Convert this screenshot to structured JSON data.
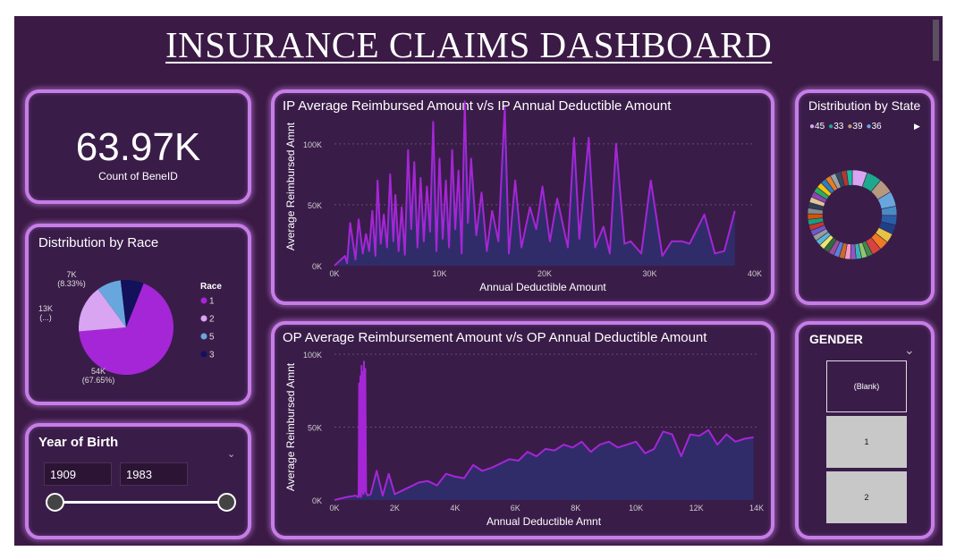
{
  "dashboard": {
    "title": "INSURANCE CLAIMS DASHBOARD"
  },
  "kpi": {
    "value": "63.97K",
    "label": "Count of BeneID"
  },
  "race": {
    "title": "Distribution by Race",
    "legend_title": "Race",
    "slices": [
      {
        "label": "1",
        "value": 54,
        "pct": 67.65,
        "color": "#a526d6",
        "l1": "54K",
        "l2": "(67.65%)"
      },
      {
        "label": "2",
        "value": 13,
        "pct": 16.3,
        "color": "#d9a4f2",
        "l1": "13K",
        "l2": "(...)"
      },
      {
        "label": "5",
        "value": 6.6,
        "pct": 8.33,
        "color": "#68a7de",
        "l1": "7K",
        "l2": "(8.33%)"
      },
      {
        "label": "3",
        "value": 6.3,
        "pct": 7.7,
        "color": "#13105c",
        "l1": "",
        "l2": ""
      }
    ]
  },
  "yob": {
    "title": "Year of Birth",
    "min": "1909",
    "max": "1983",
    "range": [
      1909,
      1983
    ],
    "selected": [
      1909,
      1983
    ]
  },
  "ip_chart": {
    "title": "IP Average Reimbursed Amount v/s IP Annual Deductible Amount"
  },
  "op_chart": {
    "title": "OP Average Reimbursement Amount v/s OP Annual Deductible Amount"
  },
  "state": {
    "title": "Distribution by State",
    "legend": [
      {
        "label": "45",
        "color": "#d9a4f2"
      },
      {
        "label": "33",
        "color": "#1ea88e"
      },
      {
        "label": "39",
        "color": "#b79a7d"
      },
      {
        "label": "36",
        "color": "#68a7de"
      }
    ],
    "next_icon": "▶",
    "ring_colors": [
      "#d9a4f2",
      "#1ea88e",
      "#b79a7d",
      "#68a7de",
      "#4a8bc4",
      "#2b5ea8",
      "#1f3f86",
      "#e6c246",
      "#ef7a22",
      "#d9423f",
      "#3e8a48",
      "#8cc96b",
      "#39b3b8",
      "#8a5bc4",
      "#f49ac1",
      "#c96b2a",
      "#5a7fd6",
      "#9b4d9e",
      "#2e6e3a",
      "#e8e86a",
      "#57b6d6",
      "#9c9c9c",
      "#6a5acd",
      "#c0392b",
      "#16a085",
      "#d35400",
      "#7f8c8d",
      "#2c3e50",
      "#e1c699",
      "#8e44ad",
      "#27ae60",
      "#f1c40f",
      "#2980b9",
      "#e67e22",
      "#95a5a6",
      "#34495e",
      "#b03a2e",
      "#1abc9c"
    ]
  },
  "gender": {
    "title": "GENDER",
    "items": [
      {
        "label": "(Blank)",
        "selected": true
      },
      {
        "label": "1",
        "selected": false
      },
      {
        "label": "2",
        "selected": false
      }
    ]
  },
  "chart_data": [
    {
      "type": "area",
      "title": "IP Average Reimbursed Amount v/s IP Annual Deductible Amount",
      "xlabel": "Annual Deductible Amount",
      "ylabel": "Average Reimbursed Amnt",
      "xlim": [
        0,
        40000
      ],
      "ylim": [
        0,
        130000
      ],
      "xticks": [
        0,
        10000,
        20000,
        30000,
        40000
      ],
      "xtick_labels": [
        "0K",
        "10K",
        "20K",
        "30K",
        "40K"
      ],
      "yticks": [
        0,
        50000,
        100000
      ],
      "ytick_labels": [
        "0K",
        "50K",
        "100K"
      ],
      "color": "#a526d6",
      "x": [
        0,
        1000,
        1200,
        1500,
        2000,
        2300,
        2700,
        3000,
        3300,
        3600,
        3900,
        4100,
        4400,
        4700,
        5000,
        5300,
        5600,
        5800,
        6100,
        6400,
        6700,
        7000,
        7300,
        7600,
        7900,
        8200,
        8500,
        8800,
        9100,
        9400,
        9700,
        10000,
        10300,
        10600,
        10900,
        11200,
        11500,
        11800,
        12100,
        12400,
        12700,
        13000,
        13500,
        14000,
        14500,
        15000,
        15600,
        16200,
        16600,
        17200,
        17800,
        18600,
        19200,
        19800,
        20500,
        21200,
        22200,
        22800,
        23300,
        24200,
        24800,
        25600,
        26200,
        26800,
        27600,
        28200,
        29200,
        30100,
        31200,
        32100,
        33100,
        33800,
        35200,
        36200,
        37100,
        38100
      ],
      "y": [
        0,
        8000,
        2000,
        35000,
        5000,
        38000,
        10000,
        26000,
        12000,
        45000,
        8000,
        70000,
        18000,
        42000,
        15000,
        75000,
        20000,
        58000,
        12000,
        48000,
        9000,
        95000,
        30000,
        85000,
        15000,
        72000,
        20000,
        65000,
        28000,
        118000,
        12000,
        88000,
        22000,
        70000,
        15000,
        95000,
        30000,
        78000,
        10000,
        135000,
        35000,
        88000,
        25000,
        60000,
        12000,
        45000,
        20000,
        130000,
        10000,
        70000,
        15000,
        48000,
        30000,
        65000,
        20000,
        55000,
        15000,
        105000,
        22000,
        105000,
        15000,
        32000,
        10000,
        100000,
        18000,
        20000,
        10000,
        70000,
        8000,
        20000,
        20000,
        18000,
        42000,
        10000,
        12000,
        45000
      ]
    },
    {
      "type": "area",
      "title": "OP Average Reimbursement Amount v/s OP Annual Deductible Amount",
      "xlabel": "Annual Deductible Amnt",
      "ylabel": "Average Reimbursed Amnt",
      "xlim": [
        0,
        14000
      ],
      "ylim": [
        0,
        100000
      ],
      "xticks": [
        0,
        2000,
        4000,
        6000,
        8000,
        10000,
        12000,
        14000
      ],
      "xtick_labels": [
        "0K",
        "2K",
        "4K",
        "6K",
        "8K",
        "10K",
        "12K",
        "14K"
      ],
      "yticks": [
        0,
        50000,
        100000
      ],
      "ytick_labels": [
        "0K",
        "50K",
        "100K"
      ],
      "color": "#a526d6",
      "x": [
        0,
        400,
        700,
        800,
        820,
        840,
        860,
        880,
        900,
        920,
        940,
        960,
        980,
        1000,
        1020,
        1050,
        1100,
        1200,
        1400,
        1600,
        1800,
        2000,
        2200,
        2500,
        2800,
        3100,
        3400,
        3700,
        4000,
        4300,
        4600,
        4900,
        5200,
        5500,
        5800,
        6100,
        6400,
        6700,
        7000,
        7300,
        7600,
        7900,
        8200,
        8500,
        8800,
        9100,
        9400,
        9700,
        10000,
        10300,
        10600,
        10900,
        11200,
        11500,
        11800,
        12100,
        12400,
        12700,
        13000,
        13300,
        13600,
        13900
      ],
      "y": [
        0,
        2000,
        3000,
        2000,
        80000,
        3000,
        85000,
        2000,
        92000,
        5000,
        88000,
        4000,
        95000,
        6000,
        90000,
        5000,
        3000,
        4000,
        20000,
        3000,
        18000,
        4000,
        6000,
        9000,
        12000,
        13000,
        10000,
        18000,
        16000,
        15000,
        24000,
        20000,
        22000,
        25000,
        28000,
        27000,
        33000,
        30000,
        35000,
        34000,
        38000,
        36000,
        40000,
        33000,
        38000,
        40000,
        36000,
        38000,
        40000,
        32000,
        35000,
        47000,
        45000,
        30000,
        45000,
        44000,
        48000,
        38000,
        45000,
        40000,
        42000,
        43000
      ]
    }
  ]
}
